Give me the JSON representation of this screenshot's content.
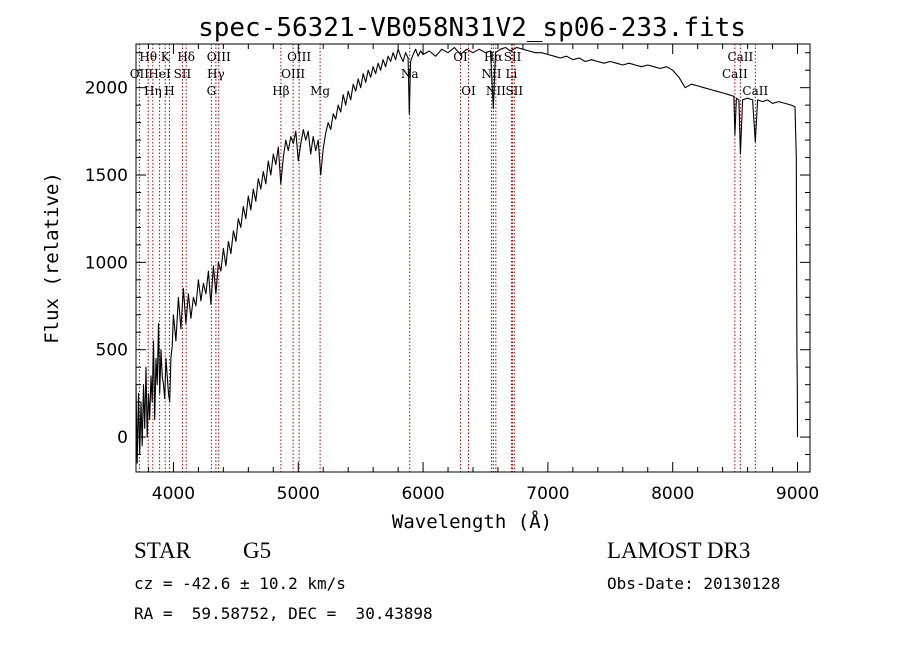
{
  "chart_data": {
    "type": "line",
    "title": "spec-56321-VB058N31V2_sp06-233.fits",
    "xlabel": "Wavelength (Å)",
    "ylabel": "Flux (relative)",
    "xlim": [
      3700,
      9100
    ],
    "ylim": [
      -200,
      2250
    ],
    "x_ticks": [
      4000,
      5000,
      6000,
      7000,
      8000,
      9000
    ],
    "y_ticks": [
      0,
      500,
      1000,
      1500,
      2000
    ],
    "series": [
      {
        "name": "flux",
        "points": [
          [
            3700,
            300
          ],
          [
            3710,
            -150
          ],
          [
            3720,
            250
          ],
          [
            3730,
            -100
          ],
          [
            3740,
            200
          ],
          [
            3750,
            -50
          ],
          [
            3760,
            300
          ],
          [
            3770,
            50
          ],
          [
            3780,
            400
          ],
          [
            3790,
            0
          ],
          [
            3800,
            250
          ],
          [
            3810,
            100
          ],
          [
            3820,
            350
          ],
          [
            3830,
            200
          ],
          [
            3840,
            550
          ],
          [
            3850,
            100
          ],
          [
            3860,
            450
          ],
          [
            3870,
            300
          ],
          [
            3880,
            650
          ],
          [
            3890,
            250
          ],
          [
            3900,
            500
          ],
          [
            3910,
            350
          ],
          [
            3920,
            300
          ],
          [
            3930,
            220
          ],
          [
            3940,
            450
          ],
          [
            3950,
            350
          ],
          [
            3960,
            250
          ],
          [
            3970,
            200
          ],
          [
            3980,
            450
          ],
          [
            3990,
            520
          ],
          [
            4000,
            700
          ],
          [
            4020,
            550
          ],
          [
            4040,
            800
          ],
          [
            4060,
            620
          ],
          [
            4080,
            850
          ],
          [
            4100,
            650
          ],
          [
            4120,
            820
          ],
          [
            4140,
            680
          ],
          [
            4160,
            800
          ],
          [
            4180,
            750
          ],
          [
            4200,
            900
          ],
          [
            4220,
            780
          ],
          [
            4240,
            880
          ],
          [
            4260,
            820
          ],
          [
            4280,
            950
          ],
          [
            4300,
            760
          ],
          [
            4320,
            980
          ],
          [
            4340,
            820
          ],
          [
            4360,
            1000
          ],
          [
            4380,
            950
          ],
          [
            4400,
            1080
          ],
          [
            4420,
            980
          ],
          [
            4440,
            1120
          ],
          [
            4460,
            1050
          ],
          [
            4480,
            1180
          ],
          [
            4500,
            1120
          ],
          [
            4520,
            1250
          ],
          [
            4540,
            1200
          ],
          [
            4560,
            1320
          ],
          [
            4580,
            1250
          ],
          [
            4600,
            1380
          ],
          [
            4620,
            1300
          ],
          [
            4640,
            1420
          ],
          [
            4660,
            1350
          ],
          [
            4680,
            1480
          ],
          [
            4700,
            1420
          ],
          [
            4720,
            1520
          ],
          [
            4740,
            1450
          ],
          [
            4760,
            1580
          ],
          [
            4780,
            1500
          ],
          [
            4800,
            1620
          ],
          [
            4820,
            1560
          ],
          [
            4840,
            1660
          ],
          [
            4860,
            1450
          ],
          [
            4880,
            1600
          ],
          [
            4900,
            1700
          ],
          [
            4920,
            1640
          ],
          [
            4940,
            1720
          ],
          [
            4960,
            1680
          ],
          [
            4980,
            1750
          ],
          [
            5000,
            1580
          ],
          [
            5020,
            1680
          ],
          [
            5040,
            1760
          ],
          [
            5060,
            1700
          ],
          [
            5080,
            1750
          ],
          [
            5100,
            1620
          ],
          [
            5120,
            1720
          ],
          [
            5140,
            1640
          ],
          [
            5160,
            1700
          ],
          [
            5180,
            1500
          ],
          [
            5200,
            1650
          ],
          [
            5220,
            1740
          ],
          [
            5240,
            1800
          ],
          [
            5260,
            1760
          ],
          [
            5280,
            1850
          ],
          [
            5300,
            1820
          ],
          [
            5320,
            1900
          ],
          [
            5340,
            1860
          ],
          [
            5360,
            1960
          ],
          [
            5380,
            1900
          ],
          [
            5400,
            1980
          ],
          [
            5420,
            1930
          ],
          [
            5440,
            2020
          ],
          [
            5460,
            1980
          ],
          [
            5480,
            2050
          ],
          [
            5500,
            2000
          ],
          [
            5520,
            2080
          ],
          [
            5540,
            2030
          ],
          [
            5560,
            2100
          ],
          [
            5580,
            2060
          ],
          [
            5600,
            2120
          ],
          [
            5620,
            2080
          ],
          [
            5640,
            2140
          ],
          [
            5660,
            2100
          ],
          [
            5680,
            2160
          ],
          [
            5700,
            2120
          ],
          [
            5720,
            2180
          ],
          [
            5740,
            2150
          ],
          [
            5760,
            2200
          ],
          [
            5780,
            2160
          ],
          [
            5800,
            2220
          ],
          [
            5820,
            2180
          ],
          [
            5840,
            2150
          ],
          [
            5860,
            2200
          ],
          [
            5880,
            2170
          ],
          [
            5890,
            1850
          ],
          [
            5900,
            2150
          ],
          [
            5920,
            2190
          ],
          [
            5940,
            2220
          ],
          [
            5960,
            2180
          ],
          [
            5980,
            2210
          ],
          [
            6000,
            2190
          ],
          [
            6050,
            2210
          ],
          [
            6100,
            2180
          ],
          [
            6150,
            2220
          ],
          [
            6200,
            2200
          ],
          [
            6250,
            2230
          ],
          [
            6300,
            2190
          ],
          [
            6350,
            2220
          ],
          [
            6400,
            2200
          ],
          [
            6450,
            2220
          ],
          [
            6500,
            2200
          ],
          [
            6540,
            2210
          ],
          [
            6563,
            1880
          ],
          [
            6580,
            2200
          ],
          [
            6620,
            2220
          ],
          [
            6660,
            2230
          ],
          [
            6700,
            2210
          ],
          [
            6750,
            2230
          ],
          [
            6800,
            2220
          ],
          [
            6850,
            2210
          ],
          [
            6900,
            2200
          ],
          [
            6950,
            2200
          ],
          [
            7000,
            2190
          ],
          [
            7050,
            2180
          ],
          [
            7100,
            2170
          ],
          [
            7150,
            2180
          ],
          [
            7200,
            2160
          ],
          [
            7250,
            2170
          ],
          [
            7300,
            2150
          ],
          [
            7350,
            2160
          ],
          [
            7400,
            2150
          ],
          [
            7450,
            2140
          ],
          [
            7500,
            2150
          ],
          [
            7550,
            2140
          ],
          [
            7600,
            2130
          ],
          [
            7650,
            2140
          ],
          [
            7700,
            2130
          ],
          [
            7750,
            2120
          ],
          [
            7800,
            2130
          ],
          [
            7850,
            2120
          ],
          [
            7900,
            2110
          ],
          [
            7950,
            2120
          ],
          [
            8000,
            2100
          ],
          [
            8050,
            2060
          ],
          [
            8100,
            2000
          ],
          [
            8150,
            2020
          ],
          [
            8200,
            2010
          ],
          [
            8250,
            2000
          ],
          [
            8300,
            1990
          ],
          [
            8350,
            1980
          ],
          [
            8400,
            1970
          ],
          [
            8450,
            1960
          ],
          [
            8490,
            1950
          ],
          [
            8498,
            1730
          ],
          [
            8510,
            1940
          ],
          [
            8530,
            1930
          ],
          [
            8542,
            1620
          ],
          [
            8560,
            1930
          ],
          [
            8600,
            1940
          ],
          [
            8640,
            1930
          ],
          [
            8662,
            1690
          ],
          [
            8680,
            1930
          ],
          [
            8720,
            1920
          ],
          [
            8760,
            1930
          ],
          [
            8800,
            1910
          ],
          [
            8850,
            1920
          ],
          [
            8900,
            1910
          ],
          [
            8950,
            1900
          ],
          [
            8980,
            1890
          ],
          [
            8990,
            1600
          ],
          [
            8995,
            500
          ],
          [
            8998,
            300
          ],
          [
            9000,
            0
          ]
        ]
      }
    ],
    "lines": [
      {
        "label": "Hθ",
        "x": 3798,
        "row": 0,
        "show": true
      },
      {
        "label": "OII",
        "x": 3727,
        "row": 1,
        "show": true
      },
      {
        "label": "Hη",
        "x": 3835,
        "row": 2,
        "show": true
      },
      {
        "label": "K",
        "x": 3934,
        "row": 0,
        "show": true
      },
      {
        "label": "HeI",
        "x": 3889,
        "row": 1,
        "show": true
      },
      {
        "label": "H",
        "x": 3968,
        "row": 2,
        "show": true
      },
      {
        "label": "Hδ",
        "x": 4102,
        "row": 0,
        "show": true
      },
      {
        "label": "SII",
        "x": 4072,
        "row": 1,
        "show": true
      },
      {
        "label": "OIII",
        "x": 4363,
        "row": 0,
        "show": true
      },
      {
        "label": "Hγ",
        "x": 4340,
        "row": 1,
        "show": true
      },
      {
        "label": "G",
        "x": 4304,
        "row": 2,
        "show": true
      },
      {
        "label": "OIII",
        "x": 5007,
        "row": 0,
        "show": true
      },
      {
        "label": "OIII",
        "x": 4959,
        "row": 1,
        "show": true
      },
      {
        "label": "Hβ",
        "x": 4861,
        "row": 2,
        "show": true
      },
      {
        "label": "Mg",
        "x": 5175,
        "row": 2,
        "show": true
      },
      {
        "label": "Na",
        "x": 5893,
        "row": 1,
        "show": true
      },
      {
        "label": "OI",
        "x": 6300,
        "row": 0,
        "show": true
      },
      {
        "label": "OI",
        "x": 6364,
        "row": 2,
        "show": true
      },
      {
        "label": "NII",
        "x": 6548,
        "row": 1,
        "show": true
      },
      {
        "label": "Hα",
        "x": 6563,
        "row": 0,
        "show": true
      },
      {
        "label": "NII",
        "x": 6583,
        "row": 2,
        "show": true
      },
      {
        "label": "SII",
        "x": 6717,
        "row": 0,
        "show": true
      },
      {
        "label": "Li",
        "x": 6708,
        "row": 1,
        "show": true
      },
      {
        "label": "SII",
        "x": 6731,
        "row": 2,
        "show": true
      },
      {
        "label": "CaII",
        "x": 8498,
        "row": 1,
        "show": true
      },
      {
        "label": "CaII",
        "x": 8542,
        "row": 0,
        "show": true
      },
      {
        "label": "CaII",
        "x": 8662,
        "row": 2,
        "show": true
      }
    ]
  },
  "info": {
    "class": "STAR",
    "subclass": "G5",
    "survey": "LAMOST DR3",
    "cz": "cz = -42.6 ± 10.2 km/s",
    "obs_date": "Obs-Date: 20130128",
    "radec": "RA =  59.58752, DEC =  30.43898"
  }
}
